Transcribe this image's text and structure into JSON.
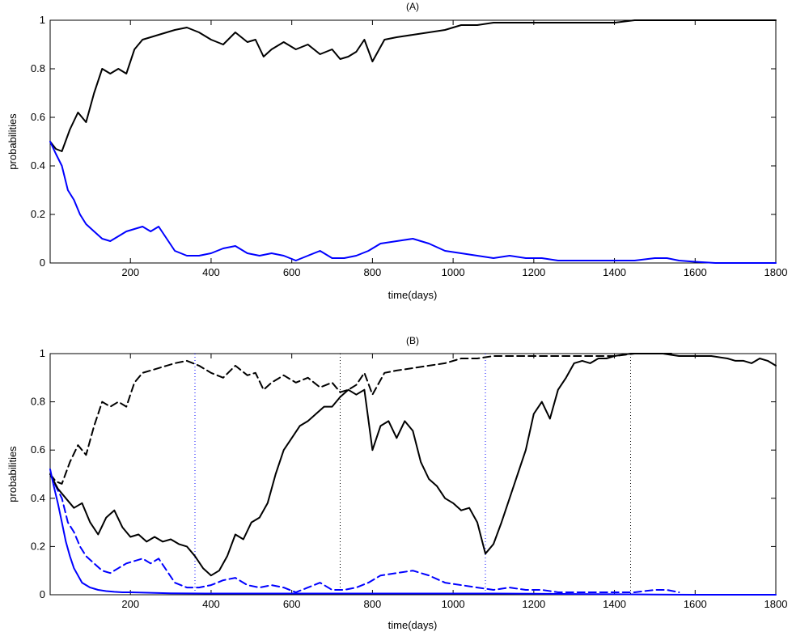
{
  "colors": {
    "black": "#000000",
    "blue": "#0000ff"
  },
  "chart_data": [
    {
      "type": "line",
      "title": "(A)",
      "xlabel": "time(days)",
      "ylabel": "probabilities",
      "xlim": [
        1,
        1800
      ],
      "ylim": [
        0,
        1
      ],
      "xticks": [
        200,
        400,
        600,
        800,
        1000,
        1200,
        1400,
        1600,
        1800
      ],
      "yticks": [
        0,
        0.2,
        0.4,
        0.6,
        0.8,
        1
      ],
      "x_tick_labels": [
        "200",
        "400",
        "600",
        "800",
        "1000",
        "1200",
        "1400",
        "1600",
        "1800"
      ],
      "y_tick_labels": [
        "0",
        "0.2",
        "0.4",
        "0.6",
        "0.8",
        "1"
      ],
      "grid": false,
      "series": [
        {
          "color": "#000000",
          "dash": "solid",
          "x": [
            1,
            15,
            30,
            50,
            70,
            90,
            110,
            130,
            150,
            170,
            190,
            210,
            230,
            250,
            270,
            290,
            310,
            340,
            370,
            400,
            430,
            460,
            490,
            510,
            530,
            550,
            580,
            610,
            640,
            670,
            700,
            720,
            740,
            760,
            780,
            800,
            830,
            860,
            900,
            940,
            980,
            1020,
            1060,
            1100,
            1150,
            1200,
            1250,
            1300,
            1350,
            1400,
            1450,
            1500,
            1550,
            1600,
            1650,
            1700,
            1750,
            1800
          ],
          "y": [
            0.5,
            0.47,
            0.46,
            0.55,
            0.62,
            0.58,
            0.7,
            0.8,
            0.78,
            0.8,
            0.78,
            0.88,
            0.92,
            0.93,
            0.94,
            0.95,
            0.96,
            0.97,
            0.95,
            0.92,
            0.9,
            0.95,
            0.91,
            0.92,
            0.85,
            0.88,
            0.91,
            0.88,
            0.9,
            0.86,
            0.88,
            0.84,
            0.85,
            0.87,
            0.92,
            0.83,
            0.92,
            0.93,
            0.94,
            0.95,
            0.96,
            0.98,
            0.98,
            0.99,
            0.99,
            0.99,
            0.99,
            0.99,
            0.99,
            0.99,
            1.0,
            1.0,
            1.0,
            1.0,
            1.0,
            1.0,
            1.0,
            1.0
          ]
        },
        {
          "color": "#0000ff",
          "dash": "solid",
          "x": [
            1,
            15,
            30,
            45,
            60,
            75,
            90,
            110,
            130,
            150,
            170,
            190,
            210,
            230,
            250,
            270,
            290,
            310,
            340,
            370,
            400,
            430,
            460,
            490,
            520,
            550,
            580,
            610,
            640,
            670,
            700,
            730,
            760,
            790,
            820,
            860,
            900,
            940,
            980,
            1020,
            1060,
            1100,
            1140,
            1180,
            1220,
            1260,
            1300,
            1350,
            1400,
            1450,
            1500,
            1530,
            1560,
            1600,
            1650,
            1700,
            1750,
            1800
          ],
          "y": [
            0.5,
            0.45,
            0.4,
            0.3,
            0.26,
            0.2,
            0.16,
            0.13,
            0.1,
            0.09,
            0.11,
            0.13,
            0.14,
            0.15,
            0.13,
            0.15,
            0.1,
            0.05,
            0.03,
            0.03,
            0.04,
            0.06,
            0.07,
            0.04,
            0.03,
            0.04,
            0.03,
            0.01,
            0.03,
            0.05,
            0.02,
            0.02,
            0.03,
            0.05,
            0.08,
            0.09,
            0.1,
            0.08,
            0.05,
            0.04,
            0.03,
            0.02,
            0.03,
            0.02,
            0.02,
            0.01,
            0.01,
            0.01,
            0.01,
            0.01,
            0.02,
            0.02,
            0.01,
            0.005,
            0.0,
            0.0,
            0.0,
            0.0
          ]
        }
      ]
    },
    {
      "type": "line",
      "title": "(B)",
      "xlabel": "time(days)",
      "ylabel": "probabilities",
      "xlim": [
        1,
        1800
      ],
      "ylim": [
        0,
        1
      ],
      "xticks": [
        200,
        400,
        600,
        800,
        1000,
        1200,
        1400,
        1600,
        1800
      ],
      "yticks": [
        0,
        0.2,
        0.4,
        0.6,
        0.8,
        1
      ],
      "x_tick_labels": [
        "200",
        "400",
        "600",
        "800",
        "1000",
        "1200",
        "1400",
        "1600",
        "1800"
      ],
      "y_tick_labels": [
        "0",
        "0.2",
        "0.4",
        "0.6",
        "0.8",
        "1"
      ],
      "grid": false,
      "vertical_lines": [
        {
          "x": 360,
          "color": "#0000ff"
        },
        {
          "x": 720,
          "color": "#000000"
        },
        {
          "x": 1080,
          "color": "#0000ff"
        },
        {
          "x": 1440,
          "color": "#000000"
        }
      ],
      "series": [
        {
          "color": "#000000",
          "dash": "dashed",
          "x": [
            1,
            15,
            30,
            50,
            70,
            90,
            110,
            130,
            150,
            170,
            190,
            210,
            230,
            250,
            270,
            290,
            310,
            340,
            370,
            400,
            430,
            460,
            490,
            510,
            530,
            550,
            580,
            610,
            640,
            670,
            700,
            720,
            740,
            760,
            780,
            800,
            830,
            860,
            900,
            940,
            980,
            1020,
            1060,
            1100,
            1150,
            1200,
            1250,
            1300,
            1350,
            1400,
            1450,
            1500,
            1550
          ],
          "y": [
            0.5,
            0.47,
            0.46,
            0.55,
            0.62,
            0.58,
            0.7,
            0.8,
            0.78,
            0.8,
            0.78,
            0.88,
            0.92,
            0.93,
            0.94,
            0.95,
            0.96,
            0.97,
            0.95,
            0.92,
            0.9,
            0.95,
            0.91,
            0.92,
            0.85,
            0.88,
            0.91,
            0.88,
            0.9,
            0.86,
            0.88,
            0.84,
            0.85,
            0.87,
            0.92,
            0.83,
            0.92,
            0.93,
            0.94,
            0.95,
            0.96,
            0.98,
            0.98,
            0.99,
            0.99,
            0.99,
            0.99,
            0.99,
            0.99,
            0.99,
            1.0,
            1.0,
            1.0
          ]
        },
        {
          "color": "#0000ff",
          "dash": "dashed",
          "x": [
            1,
            15,
            30,
            45,
            60,
            75,
            90,
            110,
            130,
            150,
            170,
            190,
            210,
            230,
            250,
            270,
            290,
            310,
            340,
            370,
            400,
            430,
            460,
            490,
            520,
            550,
            580,
            610,
            640,
            670,
            700,
            730,
            760,
            790,
            820,
            860,
            900,
            940,
            980,
            1020,
            1060,
            1100,
            1140,
            1180,
            1220,
            1260,
            1300,
            1350,
            1400,
            1450,
            1500,
            1530,
            1560
          ],
          "y": [
            0.5,
            0.45,
            0.4,
            0.3,
            0.26,
            0.2,
            0.16,
            0.13,
            0.1,
            0.09,
            0.11,
            0.13,
            0.14,
            0.15,
            0.13,
            0.15,
            0.1,
            0.05,
            0.03,
            0.03,
            0.04,
            0.06,
            0.07,
            0.04,
            0.03,
            0.04,
            0.03,
            0.01,
            0.03,
            0.05,
            0.02,
            0.02,
            0.03,
            0.05,
            0.08,
            0.09,
            0.1,
            0.08,
            0.05,
            0.04,
            0.03,
            0.02,
            0.03,
            0.02,
            0.02,
            0.01,
            0.01,
            0.01,
            0.01,
            0.01,
            0.02,
            0.02,
            0.01
          ]
        },
        {
          "color": "#000000",
          "dash": "solid",
          "x": [
            1,
            20,
            40,
            60,
            80,
            100,
            120,
            140,
            160,
            180,
            200,
            220,
            240,
            260,
            280,
            300,
            320,
            340,
            360,
            380,
            400,
            420,
            440,
            460,
            480,
            500,
            520,
            540,
            560,
            580,
            600,
            620,
            640,
            660,
            680,
            700,
            720,
            740,
            760,
            780,
            800,
            820,
            840,
            860,
            880,
            900,
            920,
            940,
            960,
            980,
            1000,
            1020,
            1040,
            1060,
            1080,
            1100,
            1120,
            1140,
            1160,
            1180,
            1200,
            1220,
            1240,
            1260,
            1280,
            1300,
            1320,
            1340,
            1360,
            1380,
            1400,
            1440,
            1480,
            1520,
            1560,
            1600,
            1640,
            1680,
            1700,
            1720,
            1740,
            1760,
            1780,
            1800
          ],
          "y": [
            0.5,
            0.44,
            0.4,
            0.36,
            0.38,
            0.3,
            0.25,
            0.32,
            0.35,
            0.28,
            0.24,
            0.25,
            0.22,
            0.24,
            0.22,
            0.23,
            0.21,
            0.2,
            0.16,
            0.11,
            0.08,
            0.1,
            0.16,
            0.25,
            0.23,
            0.3,
            0.32,
            0.38,
            0.5,
            0.6,
            0.65,
            0.7,
            0.72,
            0.75,
            0.78,
            0.78,
            0.82,
            0.85,
            0.83,
            0.85,
            0.6,
            0.7,
            0.72,
            0.65,
            0.72,
            0.68,
            0.55,
            0.48,
            0.45,
            0.4,
            0.38,
            0.35,
            0.36,
            0.3,
            0.17,
            0.21,
            0.3,
            0.4,
            0.5,
            0.6,
            0.75,
            0.8,
            0.73,
            0.85,
            0.9,
            0.96,
            0.97,
            0.96,
            0.98,
            0.98,
            0.99,
            1.0,
            1.0,
            1.0,
            0.99,
            0.99,
            0.99,
            0.98,
            0.97,
            0.97,
            0.96,
            0.98,
            0.97,
            0.95
          ]
        },
        {
          "color": "#0000ff",
          "dash": "solid",
          "x": [
            1,
            10,
            20,
            30,
            40,
            50,
            60,
            70,
            80,
            90,
            100,
            110,
            120,
            140,
            160,
            180,
            200,
            250,
            300,
            400,
            500,
            600,
            700,
            800,
            900,
            1000,
            1100,
            1200,
            1300,
            1400,
            1500,
            1600,
            1700,
            1800
          ],
          "y": [
            0.52,
            0.45,
            0.38,
            0.3,
            0.22,
            0.16,
            0.11,
            0.08,
            0.05,
            0.04,
            0.03,
            0.025,
            0.02,
            0.015,
            0.012,
            0.01,
            0.01,
            0.008,
            0.006,
            0.005,
            0.005,
            0.005,
            0.005,
            0.005,
            0.005,
            0.005,
            0.005,
            0.004,
            0.003,
            0.002,
            0.001,
            0.0,
            0.0,
            0.0
          ]
        }
      ]
    }
  ]
}
